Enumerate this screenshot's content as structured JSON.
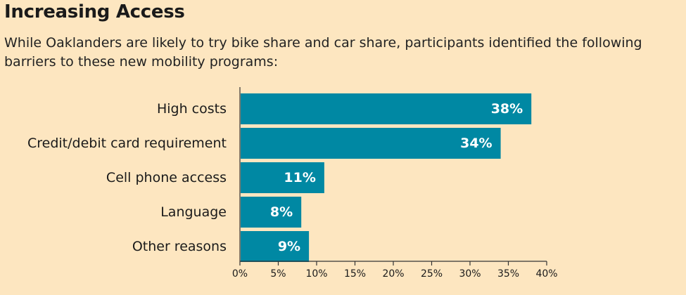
{
  "header": {
    "title": "Increasing Access",
    "subtitle": "While Oaklanders are likely to try bike share and car share, participants identified the following barriers to these new mobility programs:"
  },
  "colors": {
    "background": "#fde6c0",
    "bar": "#0088a3",
    "value_label": "#ffffff",
    "axis": "#333333"
  },
  "chart_data": {
    "type": "bar",
    "orientation": "horizontal",
    "categories": [
      "High costs",
      "Credit/debit card requirement",
      "Cell phone access",
      "Language",
      "Other reasons"
    ],
    "values": [
      38,
      34,
      11,
      8,
      9
    ],
    "value_labels": [
      "38%",
      "34%",
      "11%",
      "8%",
      "9%"
    ],
    "xlim": [
      0,
      40
    ],
    "xticks": [
      0,
      5,
      10,
      15,
      20,
      25,
      30,
      35,
      40
    ],
    "xtick_labels": [
      "0%",
      "5%",
      "10%",
      "15%",
      "20%",
      "25%",
      "30%",
      "35%",
      "40%"
    ],
    "grid": false,
    "legend": "none"
  }
}
